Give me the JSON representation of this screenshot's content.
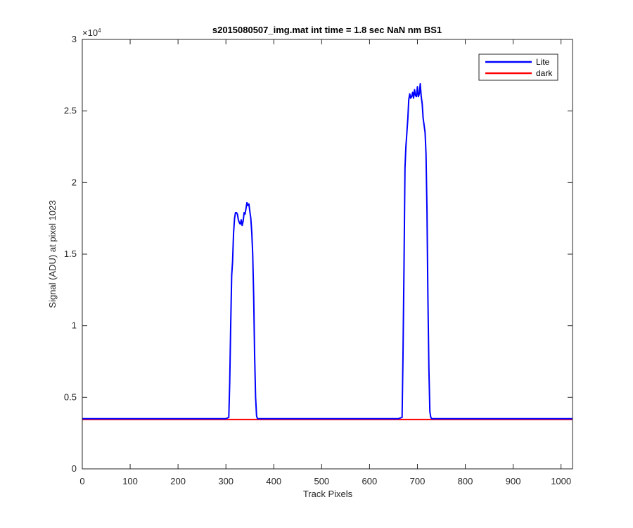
{
  "chart_data": {
    "type": "line",
    "title": "s2015080507_img.mat int time = 1.8 sec  NaN nm BS1",
    "xlabel": "Track Pixels",
    "ylabel": "Signal (ADU) at pixel 1023",
    "y_exponent_label": "×10",
    "y_exponent_power": "4",
    "xlim": [
      0,
      1024
    ],
    "ylim": [
      0,
      30000
    ],
    "x_ticks": [
      0,
      100,
      200,
      300,
      400,
      500,
      600,
      700,
      800,
      900,
      1000
    ],
    "x_tick_labels": [
      "0",
      "100",
      "200",
      "300",
      "400",
      "500",
      "600",
      "700",
      "800",
      "900",
      "1000"
    ],
    "y_ticks": [
      0,
      5000,
      10000,
      15000,
      20000,
      25000,
      30000
    ],
    "y_tick_labels": [
      "0",
      "0.5",
      "1",
      "1.5",
      "2",
      "2.5",
      "3"
    ],
    "legend_position": "top-right",
    "series": [
      {
        "name": "Lite",
        "color": "#0000ff",
        "x": [
          0,
          100,
          200,
          300,
          306,
          308,
          310,
          312,
          314,
          316,
          318,
          320,
          322,
          324,
          326,
          328,
          330,
          332,
          334,
          336,
          338,
          340,
          342,
          344,
          346,
          348,
          350,
          352,
          354,
          356,
          358,
          360,
          362,
          364,
          366,
          368,
          370,
          372,
          374,
          380,
          500,
          600,
          660,
          668,
          670,
          672,
          674,
          676,
          678,
          680,
          682,
          684,
          686,
          688,
          690,
          692,
          694,
          696,
          698,
          700,
          702,
          704,
          706,
          708,
          710,
          712,
          714,
          716,
          718,
          720,
          722,
          724,
          726,
          728,
          730,
          732,
          734,
          740,
          800,
          900,
          1024
        ],
        "y": [
          3500,
          3500,
          3500,
          3500,
          3600,
          6000,
          10000,
          13500,
          14500,
          16500,
          17500,
          17900,
          17900,
          17800,
          17400,
          17200,
          17100,
          17400,
          17000,
          17300,
          17900,
          17800,
          18200,
          18600,
          18400,
          18500,
          18000,
          17500,
          16500,
          15000,
          12000,
          8000,
          5000,
          3700,
          3500,
          3500,
          3500,
          3500,
          3500,
          3500,
          3500,
          3500,
          3500,
          3600,
          8000,
          14000,
          21000,
          22500,
          23500,
          24500,
          25800,
          26200,
          25900,
          26000,
          26300,
          25900,
          26500,
          26100,
          26000,
          26700,
          26000,
          26200,
          26900,
          26000,
          25500,
          24500,
          24000,
          23500,
          22000,
          18000,
          12000,
          7000,
          4000,
          3600,
          3500,
          3500,
          3500,
          3500,
          3500,
          3500,
          3500
        ]
      },
      {
        "name": "dark",
        "color": "#ff0000",
        "x": [
          0,
          1024
        ],
        "y": [
          3450,
          3450
        ]
      }
    ]
  }
}
